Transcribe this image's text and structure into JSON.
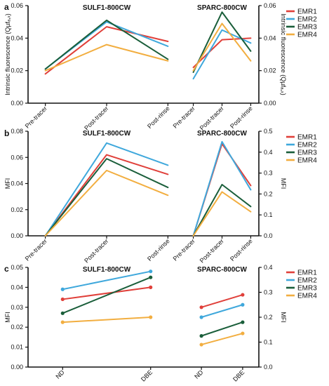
{
  "chart_data": [
    {
      "panel": "a",
      "type": "line",
      "categories": [
        "Pre-tracer",
        "Post-tracer",
        "Post-rinse"
      ],
      "legend_position": "right",
      "left": {
        "title": "SULF1-800CW",
        "ylabel": "Intrinsic fluorescence (Qµfₐ,ₓ)",
        "ylim": [
          0,
          0.06
        ],
        "ticks": [
          "0.00",
          "0.02",
          "0.04",
          "0.06"
        ],
        "series": [
          {
            "name": "EMR1",
            "color": "#E0403A",
            "values": [
              0.018,
              0.047,
              0.038
            ]
          },
          {
            "name": "EMR2",
            "color": "#3FA8DC",
            "values": [
              0.021,
              0.05,
              0.035
            ]
          },
          {
            "name": "EMR3",
            "color": "#1A5E3A",
            "values": [
              0.021,
              0.051,
              0.027
            ]
          },
          {
            "name": "EMR4",
            "color": "#F2AE40",
            "values": [
              0.02,
              0.036,
              0.026
            ]
          }
        ]
      },
      "right": {
        "title": "SPARC-800CW",
        "ylabel": "Intrinsic fluorescence (Qµfₐ,ₓ)",
        "ylim": [
          0,
          0.06
        ],
        "ticks": [
          "0.00",
          "0.02",
          "0.04",
          "0.06"
        ],
        "series": [
          {
            "name": "EMR1",
            "color": "#E0403A",
            "values": [
              0.022,
              0.039,
              0.04
            ]
          },
          {
            "name": "EMR2",
            "color": "#3FA8DC",
            "values": [
              0.015,
              0.045,
              0.037
            ]
          },
          {
            "name": "EMR3",
            "color": "#1A5E3A",
            "values": [
              0.019,
              0.056,
              0.032
            ]
          },
          {
            "name": "EMR4",
            "color": "#F2AE40",
            "values": [
              0.02,
              0.049,
              0.026
            ]
          }
        ]
      }
    },
    {
      "panel": "b",
      "type": "line",
      "categories": [
        "Pre-tracer",
        "Post-tracer",
        "Post-rinse"
      ],
      "legend_position": "right",
      "left": {
        "title": "SULF1-800CW",
        "ylabel": "MFI",
        "ylim": [
          0,
          0.08
        ],
        "ticks": [
          "0.00",
          "0.02",
          "0.04",
          "0.06",
          "0.08"
        ],
        "series": [
          {
            "name": "EMR1",
            "color": "#E0403A",
            "values": [
              0.0,
              0.062,
              0.047
            ]
          },
          {
            "name": "EMR2",
            "color": "#3FA8DC",
            "values": [
              0.0,
              0.071,
              0.054
            ]
          },
          {
            "name": "EMR3",
            "color": "#1A5E3A",
            "values": [
              0.0,
              0.059,
              0.037
            ]
          },
          {
            "name": "EMR4",
            "color": "#F2AE40",
            "values": [
              0.0,
              0.05,
              0.031
            ]
          }
        ]
      },
      "right": {
        "title": "SPARC-800CW",
        "ylabel": "MFI",
        "ylim": [
          0,
          0.5
        ],
        "ticks": [
          "0.0",
          "0.1",
          "0.2",
          "0.3",
          "0.4",
          "0.5"
        ],
        "series": [
          {
            "name": "EMR1",
            "color": "#E0403A",
            "values": [
              0.0,
              0.44,
              0.24
            ]
          },
          {
            "name": "EMR2",
            "color": "#3FA8DC",
            "values": [
              0.0,
              0.45,
              0.22
            ]
          },
          {
            "name": "EMR3",
            "color": "#1A5E3A",
            "values": [
              0.0,
              0.245,
              0.14
            ]
          },
          {
            "name": "EMR4",
            "color": "#F2AE40",
            "values": [
              0.0,
              0.21,
              0.115
            ]
          }
        ]
      }
    },
    {
      "panel": "c",
      "type": "line",
      "categories": [
        "ND",
        "DBE"
      ],
      "legend_position": "right",
      "left": {
        "title": "SULF1-800CW",
        "ylabel": "MFI",
        "ylim": [
          0,
          0.05
        ],
        "ticks": [
          "0.00",
          "0.01",
          "0.02",
          "0.03",
          "0.04",
          "0.05"
        ],
        "series": [
          {
            "name": "EMR1",
            "color": "#E0403A",
            "values": [
              0.034,
              0.04
            ]
          },
          {
            "name": "EMR2",
            "color": "#3FA8DC",
            "values": [
              0.039,
              0.048
            ]
          },
          {
            "name": "EMR3",
            "color": "#1A5E3A",
            "values": [
              0.027,
              0.045
            ]
          },
          {
            "name": "EMR4",
            "color": "#F2AE40",
            "values": [
              0.0225,
              0.025
            ]
          }
        ]
      },
      "right": {
        "title": "SPARC-800CW",
        "ylabel": "MFI",
        "ylim": [
          0,
          0.4
        ],
        "ticks": [
          "0.0",
          "0.1",
          "0.2",
          "0.3",
          "0.4"
        ],
        "series": [
          {
            "name": "EMR1",
            "color": "#E0403A",
            "values": [
              0.24,
              0.29
            ]
          },
          {
            "name": "EMR2",
            "color": "#3FA8DC",
            "values": [
              0.2,
              0.25
            ]
          },
          {
            "name": "EMR3",
            "color": "#1A5E3A",
            "values": [
              0.125,
              0.18
            ]
          },
          {
            "name": "EMR4",
            "color": "#F2AE40",
            "values": [
              0.09,
              0.135
            ]
          }
        ]
      }
    }
  ]
}
